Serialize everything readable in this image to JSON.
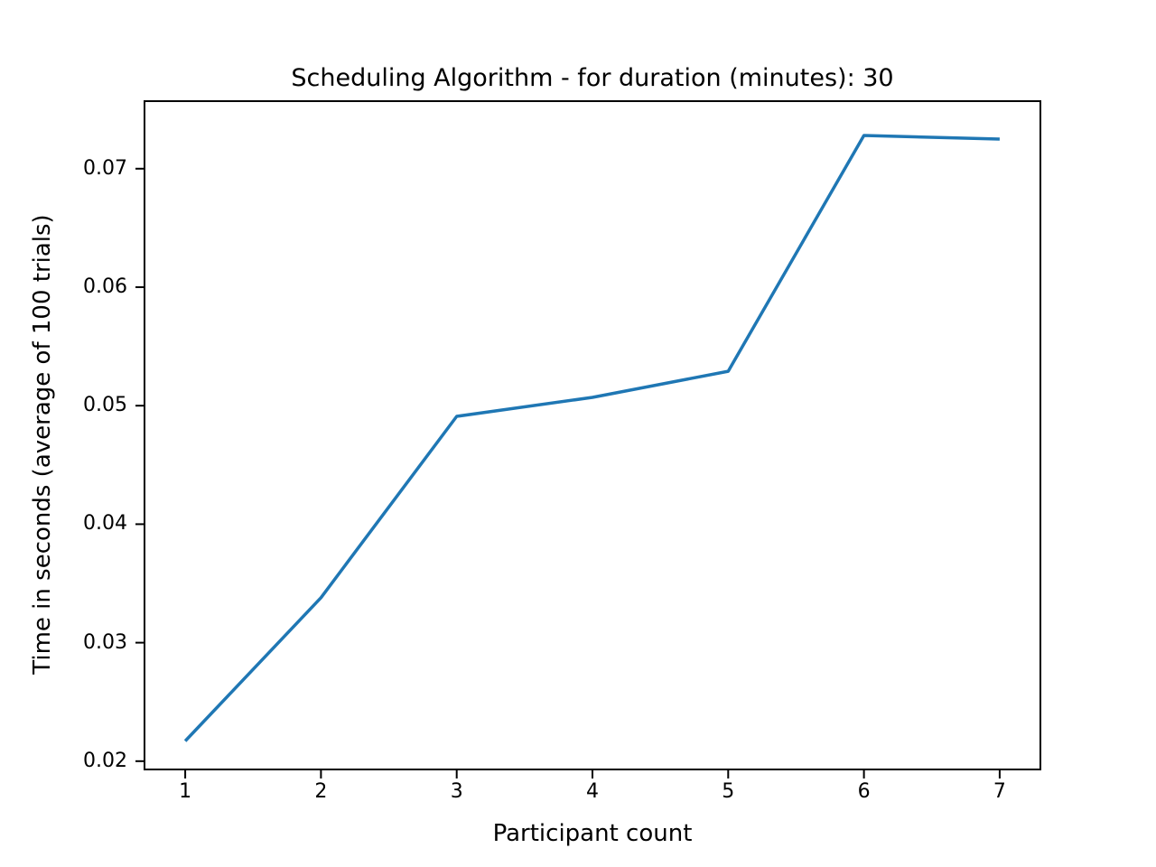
{
  "figure": {
    "background": "#ffffff",
    "text_color": "#000000",
    "spine_color": "#000000"
  },
  "chart_data": {
    "type": "line",
    "title": "Scheduling Algorithm - for duration (minutes): 30",
    "xlabel": "Participant count",
    "ylabel": "Time in seconds (average of 100 trials)",
    "x": [
      1,
      2,
      3,
      4,
      5,
      6,
      7
    ],
    "series": [
      {
        "name": "scheduling-time",
        "color": "#1f77b4",
        "values": [
          0.0217,
          0.0338,
          0.0491,
          0.0507,
          0.0529,
          0.0728,
          0.0725
        ]
      }
    ],
    "xtick_labels": [
      "1",
      "2",
      "3",
      "4",
      "5",
      "6",
      "7"
    ],
    "xtick_values": [
      1,
      2,
      3,
      4,
      5,
      6,
      7
    ],
    "ytick_labels": [
      "0.02",
      "0.03",
      "0.04",
      "0.05",
      "0.06",
      "0.07"
    ],
    "ytick_values": [
      0.02,
      0.03,
      0.04,
      0.05,
      0.06,
      0.07
    ],
    "xlim": [
      0.7,
      7.3
    ],
    "ylim": [
      0.0193,
      0.0757
    ],
    "grid": false,
    "legend": null
  }
}
